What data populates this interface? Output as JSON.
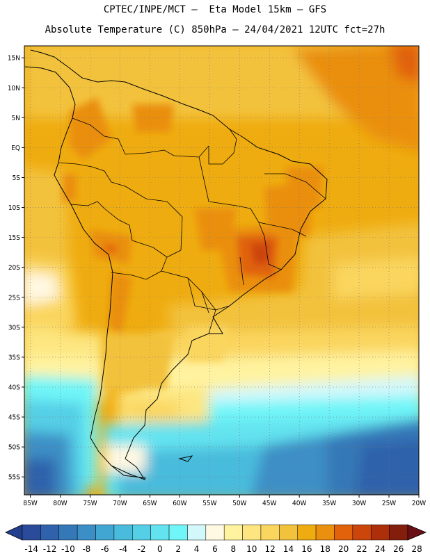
{
  "header": {
    "line1": "CPTEC/INPE/MCT –  Eta Model 15km – GFS",
    "line2": "Absolute Temperature (C) 850hPa – 24/04/2021 12UTC fct=27h"
  },
  "map": {
    "lon_range": [
      -86,
      -20
    ],
    "lat_range": [
      -58,
      17
    ],
    "lat_ticks": [
      {
        "v": 15,
        "label": "15N"
      },
      {
        "v": 10,
        "label": "10N"
      },
      {
        "v": 5,
        "label": "5N"
      },
      {
        "v": 0,
        "label": "EQ"
      },
      {
        "v": -5,
        "label": "5S"
      },
      {
        "v": -10,
        "label": "10S"
      },
      {
        "v": -15,
        "label": "15S"
      },
      {
        "v": -20,
        "label": "20S"
      },
      {
        "v": -25,
        "label": "25S"
      },
      {
        "v": -30,
        "label": "30S"
      },
      {
        "v": -35,
        "label": "35S"
      },
      {
        "v": -40,
        "label": "40S"
      },
      {
        "v": -45,
        "label": "45S"
      },
      {
        "v": -50,
        "label": "50S"
      },
      {
        "v": -55,
        "label": "55S"
      }
    ],
    "lon_ticks": [
      {
        "v": -85,
        "label": "85W"
      },
      {
        "v": -80,
        "label": "80W"
      },
      {
        "v": -75,
        "label": "75W"
      },
      {
        "v": -70,
        "label": "70W"
      },
      {
        "v": -65,
        "label": "65W"
      },
      {
        "v": -60,
        "label": "60W"
      },
      {
        "v": -55,
        "label": "55W"
      },
      {
        "v": -50,
        "label": "50W"
      },
      {
        "v": -45,
        "label": "45W"
      },
      {
        "v": -40,
        "label": "40W"
      },
      {
        "v": -35,
        "label": "35W"
      },
      {
        "v": -30,
        "label": "30W"
      },
      {
        "v": -25,
        "label": "25W"
      },
      {
        "v": -20,
        "label": "20W"
      }
    ],
    "grid": "dotted"
  },
  "colorbar": {
    "labels": [
      "-14",
      "-12",
      "-10",
      "-8",
      "-6",
      "-4",
      "-2",
      "0",
      "2",
      "4",
      "6",
      "8",
      "10",
      "12",
      "14",
      "16",
      "18",
      "20",
      "22",
      "24",
      "26",
      "28"
    ],
    "under_color": "#233d8f",
    "over_color": "#6b0f16",
    "colors": [
      "#2a4a9a",
      "#2f62ab",
      "#3478b8",
      "#3c8fc6",
      "#41a6d2",
      "#49bbdc",
      "#55cfe6",
      "#63e3ef",
      "#70f5f8",
      "#d2f8fb",
      "#fff8e2",
      "#fff3a0",
      "#fde680",
      "#fad65e",
      "#f3c23c",
      "#efac10",
      "#ea8f0e",
      "#e1620b",
      "#cc450a",
      "#ac2f0a",
      "#831d0c"
    ]
  }
}
